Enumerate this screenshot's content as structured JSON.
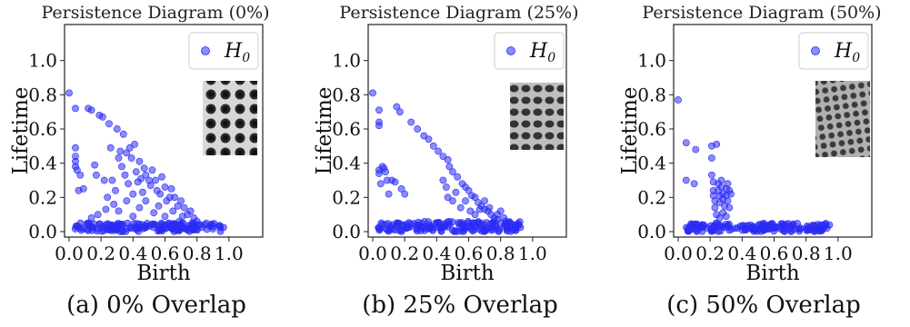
{
  "chart_data": [
    {
      "type": "scatter",
      "title": "Persistence Diagram (0%)",
      "caption": "(a) 0% Overlap",
      "xlabel": "Birth",
      "ylabel": "Lifetime",
      "xlim": [
        0.0,
        1.2
      ],
      "ylim": [
        0.0,
        1.2
      ],
      "xticks": [
        "0.0",
        "0.2",
        "0.4",
        "0.6",
        "0.8",
        "1.0"
      ],
      "yticks": [
        "0.0",
        "0.2",
        "0.4",
        "0.6",
        "0.8",
        "1.0"
      ],
      "legend": {
        "label": "H",
        "subscript": "0",
        "position": "top-right"
      },
      "grid": false,
      "series": [
        {
          "name": "H0",
          "color": "#2b2bf5",
          "points": [
            [
              0.0,
              0.81
            ],
            [
              0.04,
              0.72
            ],
            [
              0.04,
              0.49
            ],
            [
              0.04,
              0.44
            ],
            [
              0.04,
              0.41
            ],
            [
              0.04,
              0.38
            ],
            [
              0.05,
              0.36
            ],
            [
              0.06,
              0.24
            ],
            [
              0.07,
              0.33
            ],
            [
              0.09,
              0.25
            ],
            [
              0.12,
              0.72
            ],
            [
              0.14,
              0.71
            ],
            [
              0.16,
              0.39
            ],
            [
              0.17,
              0.33
            ],
            [
              0.19,
              0.68
            ],
            [
              0.21,
              0.67
            ],
            [
              0.22,
              0.3
            ],
            [
              0.24,
              0.2
            ],
            [
              0.25,
              0.63
            ],
            [
              0.26,
              0.49
            ],
            [
              0.27,
              0.3
            ],
            [
              0.29,
              0.24
            ],
            [
              0.3,
              0.6
            ],
            [
              0.31,
              0.43
            ],
            [
              0.32,
              0.47
            ],
            [
              0.33,
              0.38
            ],
            [
              0.34,
              0.57
            ],
            [
              0.35,
              0.33
            ],
            [
              0.36,
              0.46
            ],
            [
              0.37,
              0.28
            ],
            [
              0.38,
              0.49
            ],
            [
              0.39,
              0.43
            ],
            [
              0.4,
              0.22
            ],
            [
              0.41,
              0.51
            ],
            [
              0.42,
              0.35
            ],
            [
              0.43,
              0.29
            ],
            [
              0.44,
              0.41
            ],
            [
              0.45,
              0.31
            ],
            [
              0.46,
              0.23
            ],
            [
              0.47,
              0.37
            ],
            [
              0.48,
              0.33
            ],
            [
              0.5,
              0.3
            ],
            [
              0.51,
              0.27
            ],
            [
              0.52,
              0.36
            ],
            [
              0.54,
              0.3
            ],
            [
              0.55,
              0.24
            ],
            [
              0.57,
              0.22
            ],
            [
              0.58,
              0.32
            ],
            [
              0.6,
              0.26
            ],
            [
              0.61,
              0.18
            ],
            [
              0.63,
              0.2
            ],
            [
              0.64,
              0.25
            ],
            [
              0.66,
              0.2
            ],
            [
              0.68,
              0.15
            ],
            [
              0.7,
              0.18
            ],
            [
              0.72,
              0.14
            ],
            [
              0.74,
              0.1
            ],
            [
              0.76,
              0.12
            ],
            [
              0.78,
              0.08
            ],
            [
              0.8,
              0.06
            ],
            [
              0.12,
              0.05
            ],
            [
              0.14,
              0.08
            ],
            [
              0.18,
              0.1
            ],
            [
              0.23,
              0.13
            ],
            [
              0.28,
              0.16
            ],
            [
              0.31,
              0.12
            ],
            [
              0.36,
              0.18
            ],
            [
              0.4,
              0.09
            ],
            [
              0.44,
              0.14
            ],
            [
              0.48,
              0.18
            ],
            [
              0.53,
              0.11
            ],
            [
              0.56,
              0.15
            ],
            [
              0.6,
              0.09
            ],
            [
              0.65,
              0.12
            ],
            [
              0.69,
              0.06
            ],
            [
              0.71,
              0.09
            ],
            [
              0.77,
              0.05
            ],
            [
              0.82,
              0.04
            ],
            [
              0.86,
              0.05
            ],
            [
              0.9,
              0.03
            ]
          ]
        }
      ],
      "baseline_band": {
        "x_range": [
          0.03,
          0.97
        ],
        "y_range": [
          0.0,
          0.05
        ]
      }
    },
    {
      "type": "scatter",
      "title": "Persistence Diagram (25%)",
      "caption": "(b) 25% Overlap",
      "xlabel": "Birth",
      "ylabel": "Lifetime",
      "xlim": [
        0.0,
        1.2
      ],
      "ylim": [
        0.0,
        1.2
      ],
      "xticks": [
        "0.0",
        "0.2",
        "0.4",
        "0.6",
        "0.8",
        "1.0"
      ],
      "yticks": [
        "0.0",
        "0.2",
        "0.4",
        "0.6",
        "0.8",
        "1.0"
      ],
      "legend": {
        "label": "H",
        "subscript": "0",
        "position": "top-right"
      },
      "grid": false,
      "series": [
        {
          "name": "H0",
          "color": "#2b2bf5",
          "points": [
            [
              0.0,
              0.81
            ],
            [
              0.04,
              0.71
            ],
            [
              0.04,
              0.64
            ],
            [
              0.04,
              0.62
            ],
            [
              0.04,
              0.36
            ],
            [
              0.04,
              0.34
            ],
            [
              0.05,
              0.28
            ],
            [
              0.06,
              0.38
            ],
            [
              0.07,
              0.37
            ],
            [
              0.08,
              0.35
            ],
            [
              0.09,
              0.3
            ],
            [
              0.1,
              0.22
            ],
            [
              0.12,
              0.3
            ],
            [
              0.14,
              0.29
            ],
            [
              0.15,
              0.73
            ],
            [
              0.17,
              0.7
            ],
            [
              0.18,
              0.25
            ],
            [
              0.2,
              0.22
            ],
            [
              0.24,
              0.64
            ],
            [
              0.28,
              0.6
            ],
            [
              0.32,
              0.56
            ],
            [
              0.35,
              0.54
            ],
            [
              0.38,
              0.5
            ],
            [
              0.41,
              0.47
            ],
            [
              0.44,
              0.44
            ],
            [
              0.47,
              0.42
            ],
            [
              0.48,
              0.38
            ],
            [
              0.5,
              0.35
            ],
            [
              0.53,
              0.32
            ],
            [
              0.56,
              0.28
            ],
            [
              0.58,
              0.26
            ],
            [
              0.6,
              0.24
            ],
            [
              0.62,
              0.21
            ],
            [
              0.64,
              0.2
            ],
            [
              0.66,
              0.17
            ],
            [
              0.68,
              0.15
            ],
            [
              0.7,
              0.13
            ],
            [
              0.72,
              0.12
            ],
            [
              0.74,
              0.1
            ],
            [
              0.76,
              0.08
            ],
            [
              0.78,
              0.07
            ],
            [
              0.8,
              0.05
            ],
            [
              0.44,
              0.3
            ],
            [
              0.46,
              0.26
            ],
            [
              0.47,
              0.2
            ],
            [
              0.5,
              0.18
            ],
            [
              0.52,
              0.23
            ],
            [
              0.55,
              0.14
            ],
            [
              0.58,
              0.18
            ],
            [
              0.61,
              0.12
            ],
            [
              0.64,
              0.1
            ],
            [
              0.67,
              0.13
            ],
            [
              0.7,
              0.18
            ],
            [
              0.73,
              0.14
            ],
            [
              0.76,
              0.06
            ],
            [
              0.78,
              0.1
            ],
            [
              0.8,
              0.12
            ],
            [
              0.82,
              0.08
            ],
            [
              0.84,
              0.05
            ],
            [
              0.86,
              0.03
            ]
          ]
        }
      ],
      "baseline_band": {
        "x_range": [
          0.03,
          0.93
        ],
        "y_range": [
          0.0,
          0.06
        ]
      }
    },
    {
      "type": "scatter",
      "title": "Persistence Diagram (50%)",
      "caption": "(c) 50% Overlap",
      "xlabel": "Birth",
      "ylabel": "Lifetime",
      "xlim": [
        0.0,
        1.2
      ],
      "ylim": [
        0.0,
        1.2
      ],
      "xticks": [
        "0.0",
        "0.2",
        "0.4",
        "0.6",
        "0.8",
        "1.0"
      ],
      "yticks": [
        "0.0",
        "0.2",
        "0.4",
        "0.6",
        "0.8",
        "1.0"
      ],
      "legend": {
        "label": "H",
        "subscript": "0",
        "position": "top-right"
      },
      "grid": false,
      "series": [
        {
          "name": "H0",
          "color": "#2b2bf5",
          "points": [
            [
              0.0,
              0.77
            ],
            [
              0.05,
              0.52
            ],
            [
              0.05,
              0.3
            ],
            [
              0.1,
              0.28
            ],
            [
              0.11,
              0.48
            ],
            [
              0.21,
              0.5
            ],
            [
              0.21,
              0.43
            ],
            [
              0.21,
              0.33
            ],
            [
              0.22,
              0.29
            ],
            [
              0.22,
              0.24
            ],
            [
              0.22,
              0.21
            ],
            [
              0.23,
              0.18
            ],
            [
              0.23,
              0.14
            ],
            [
              0.24,
              0.51
            ],
            [
              0.25,
              0.28
            ],
            [
              0.25,
              0.24
            ],
            [
              0.26,
              0.21
            ],
            [
              0.26,
              0.17
            ],
            [
              0.27,
              0.3
            ],
            [
              0.27,
              0.26
            ],
            [
              0.28,
              0.22
            ],
            [
              0.28,
              0.19
            ],
            [
              0.29,
              0.15
            ],
            [
              0.3,
              0.25
            ],
            [
              0.3,
              0.21
            ],
            [
              0.31,
              0.28
            ],
            [
              0.31,
              0.18
            ],
            [
              0.32,
              0.24
            ],
            [
              0.32,
              0.14
            ],
            [
              0.33,
              0.22
            ],
            [
              0.24,
              0.1
            ],
            [
              0.26,
              0.08
            ],
            [
              0.28,
              0.11
            ],
            [
              0.3,
              0.09
            ]
          ]
        }
      ],
      "baseline_band": {
        "x_range": [
          0.05,
          0.95
        ],
        "y_range": [
          0.0,
          0.05
        ]
      }
    }
  ]
}
